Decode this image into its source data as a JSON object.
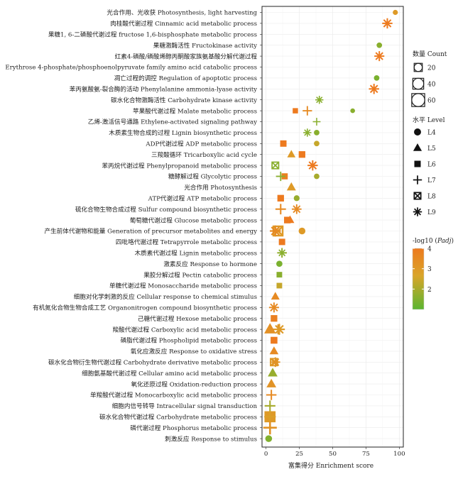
{
  "chart_data": {
    "type": "scatter",
    "title": "",
    "xlabel": "富集得分 Enrichment score",
    "ylabel": "",
    "xlim": [
      -3,
      103
    ],
    "x_ticks": [
      0,
      25,
      50,
      75,
      100
    ],
    "grid": true,
    "legend_position": "right",
    "legend": {
      "count_title": "数量 Count",
      "count_values": [
        20,
        40,
        60
      ],
      "level_title": "水平 Level",
      "levels": [
        "L4",
        "L5",
        "L6",
        "L7",
        "L8",
        "L9"
      ],
      "color_title": "-log10 (Padj)",
      "color_ticks": [
        4,
        3,
        2
      ],
      "color_range": [
        1,
        4
      ]
    },
    "colors": {
      "low": "#5bb531",
      "mid": "#d9a52a",
      "high": "#ed7a1f",
      "panel_border": "#222222",
      "grid": "#ebebeb"
    },
    "categories": [
      "光合作用、光收获 Photosynthesis, light harvesting",
      "肉桂酸代谢过程 Cinnamic acid metabolic process",
      "果糖1, 6-二磷酸代谢过程  fructose 1,6-bisphosphate metabolic process",
      "果糖激酶活性  Fructokinase activity",
      "红素4-磷酸/磷酸烯醇丙酮酸家族氨基酸分解代谢过程",
      "Erythrose 4-phosphate/phosphoenolpyruvate family amino acid catabolic process",
      "凋亡过程的调控 Regulation of apoptotic process",
      "苯丙氨酸氨-裂合酶的活动 Phenylalanine ammonia-lyase activity",
      "碳水化合物激酶活性 Carbohydrate kinase activity",
      "苹果酸代谢过程 Malate metabolic process",
      "乙烯-激活信号通路 Ethylene-activated signaling pathway",
      "木质素生物合成的过程 Lignin biosynthetic process",
      "ADP代谢过程 ADP metabolic process",
      "三羧酸循环 Tricarboxylic acid cycle",
      "苯丙烷代谢过程 Phenylpropanoid metabolic process",
      "糖酵解过程 Glycolytic process",
      "光合作用 Photosynthesis",
      "ATP代谢过程  ATP metabolic process",
      "硫化合物生物合成过程 Sulfur compound biosynthetic process",
      "葡萄糖代谢过程 Glucose metabolic process",
      "产生前体代谢物和能量 Generation of precursor metabolites and energy",
      "四吡咯代谢过程 Tetrapyrrole metabolic process",
      "木质素代谢过程 Lignin metabolic process",
      "激素反应 Response to hormone",
      "果胶分解过程 Pectin catabolic process",
      "单糖代谢过程 Monosaccharide metabolic process",
      "细胞对化学刺激的反应 Cellular response to chemical stimulus",
      "有机氮化合物生物合成工艺 Organonitrogen compound biosynthetic process",
      "己糖代谢过程 Hexose metabolic process",
      "羧酸代谢过程 Carboxylic acid metabolic process",
      "磷脂代谢过程 Phospholipid metabolic process",
      "氧化应激反应 Response to oxidative stress",
      "碳水化合物衍生物代谢过程 Carbohydrate derivative metabolic process",
      "细胞氨基酸代谢过程 Cellular amino acid metabolic process",
      "氧化还原过程 Oxidation-reduction process",
      "单羧酸代谢过程 Monocarboxylic acid metabolic process",
      "细胞内信号转导 Intracellular signal transduction",
      "碳水化合物代谢过程 Carbohydrate metabolic process",
      "磷代谢过程 Phosphorus metabolic process",
      "刺激反应 Response to stimulus"
    ],
    "series": [
      {
        "level": "L4",
        "points": [
          {
            "row": 0,
            "x": 97,
            "count": 4,
            "p": 3.0
          },
          {
            "row": 3,
            "x": 85,
            "count": 5,
            "p": 1.6
          },
          {
            "row": 6,
            "x": 83,
            "count": 5,
            "p": 1.4
          },
          {
            "row": 9,
            "x": 65,
            "count": 3,
            "p": 1.6
          },
          {
            "row": 11,
            "x": 38,
            "count": 5,
            "p": 1.6
          },
          {
            "row": 12,
            "x": 38,
            "count": 5,
            "p": 2.4
          },
          {
            "row": 15,
            "x": 38,
            "count": 5,
            "p": 2.0
          },
          {
            "row": 17,
            "x": 23,
            "count": 6,
            "p": 1.8
          },
          {
            "row": 20,
            "x": 27,
            "count": 9,
            "p": 3.0
          },
          {
            "row": 23,
            "x": 10,
            "count": 7,
            "p": 1.4
          },
          {
            "row": 39,
            "x": 2,
            "count": 9,
            "p": 1.5
          }
        ]
      },
      {
        "level": "L5",
        "points": [
          {
            "row": 13,
            "x": 19,
            "count": 9,
            "p": 3.0
          },
          {
            "row": 16,
            "x": 19,
            "count": 12,
            "p": 3.0
          },
          {
            "row": 19,
            "x": 18,
            "count": 10,
            "p": 4.0
          },
          {
            "row": 26,
            "x": 7,
            "count": 10,
            "p": 3.5
          },
          {
            "row": 29,
            "x": 3,
            "count": 22,
            "p": 3.3
          },
          {
            "row": 31,
            "x": 6,
            "count": 11,
            "p": 3.5
          },
          {
            "row": 33,
            "x": 5,
            "count": 14,
            "p": 1.8
          },
          {
            "row": 34,
            "x": 4,
            "count": 14,
            "p": 3.2
          }
        ]
      },
      {
        "level": "L6",
        "points": [
          {
            "row": 9,
            "x": 22,
            "count": 6,
            "p": 4.0
          },
          {
            "row": 12,
            "x": 13,
            "count": 10,
            "p": 4.0
          },
          {
            "row": 13,
            "x": 27,
            "count": 11,
            "p": 4.0
          },
          {
            "row": 15,
            "x": 14,
            "count": 9,
            "p": 3.8
          },
          {
            "row": 17,
            "x": 11,
            "count": 11,
            "p": 4.0
          },
          {
            "row": 19,
            "x": 16,
            "count": 11,
            "p": 4.0
          },
          {
            "row": 21,
            "x": 12,
            "count": 10,
            "p": 4.0
          },
          {
            "row": 24,
            "x": 10,
            "count": 7,
            "p": 1.6
          },
          {
            "row": 25,
            "x": 10,
            "count": 7,
            "p": 2.4
          },
          {
            "row": 28,
            "x": 6,
            "count": 11,
            "p": 3.8
          },
          {
            "row": 30,
            "x": 6,
            "count": 12,
            "p": 4.0
          },
          {
            "row": 37,
            "x": 3,
            "count": 40,
            "p": 3.0
          }
        ]
      },
      {
        "level": "L7",
        "points": [
          {
            "row": 9,
            "x": 31,
            "count": 12,
            "p": 3.5
          },
          {
            "row": 10,
            "x": 38,
            "count": 7,
            "p": 1.6
          },
          {
            "row": 15,
            "x": 11,
            "count": 12,
            "p": 1.6
          },
          {
            "row": 18,
            "x": 11,
            "count": 16,
            "p": 3.5
          },
          {
            "row": 22,
            "x": 12,
            "count": 13,
            "p": 2.0
          },
          {
            "row": 29,
            "x": 9,
            "count": 14,
            "p": 3.2
          },
          {
            "row": 35,
            "x": 4,
            "count": 15,
            "p": 3.5
          },
          {
            "row": 36,
            "x": 3,
            "count": 17,
            "p": 2.0
          },
          {
            "row": 37,
            "x": 3,
            "count": 20,
            "p": 2.8
          },
          {
            "row": 38,
            "x": 3,
            "count": 30,
            "p": 3.2
          }
        ]
      },
      {
        "level": "L8",
        "points": [
          {
            "row": 14,
            "x": 7,
            "count": 10,
            "p": 1.6
          },
          {
            "row": 20,
            "x": 9,
            "count": 24,
            "p": 3.0
          },
          {
            "row": 32,
            "x": 6,
            "count": 12,
            "p": 3.0
          }
        ]
      },
      {
        "level": "L9",
        "points": [
          {
            "row": 1,
            "x": 91,
            "count": 15,
            "p": 4.0
          },
          {
            "row": 4,
            "x": 85,
            "count": 14,
            "p": 4.0
          },
          {
            "row": 7,
            "x": 81,
            "count": 15,
            "p": 4.0
          },
          {
            "row": 8,
            "x": 40,
            "count": 8,
            "p": 1.6
          },
          {
            "row": 11,
            "x": 31,
            "count": 8,
            "p": 1.6
          },
          {
            "row": 14,
            "x": 35,
            "count": 15,
            "p": 4.0
          },
          {
            "row": 18,
            "x": 23,
            "count": 13,
            "p": 3.5
          },
          {
            "row": 20,
            "x": 7,
            "count": 18,
            "p": 3.5
          },
          {
            "row": 22,
            "x": 12,
            "count": 10,
            "p": 1.6
          },
          {
            "row": 27,
            "x": 6,
            "count": 14,
            "p": 3.5
          },
          {
            "row": 29,
            "x": 10,
            "count": 18,
            "p": 3.0
          },
          {
            "row": 32,
            "x": 7,
            "count": 13,
            "p": 3.2
          }
        ]
      }
    ]
  }
}
